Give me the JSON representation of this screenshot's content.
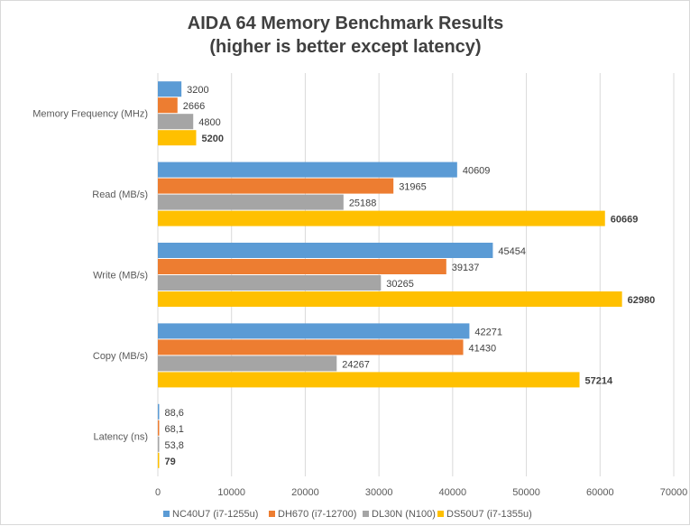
{
  "chart_data": {
    "type": "bar",
    "orientation": "horizontal",
    "title": "AIDA 64 Memory Benchmark Results",
    "subtitle": "(higher is better except latency)",
    "categories": [
      "Memory Frequency (MHz)",
      "Read (MB/s)",
      "Write (MB/s)",
      "Copy (MB/s)",
      "Latency (ns)"
    ],
    "series": [
      {
        "name": "NC40U7 (i7-1255u)",
        "color": "#5b9bd5",
        "values": [
          3200,
          40609,
          45454,
          42271,
          88.6
        ],
        "labels": [
          "3200",
          "40609",
          "45454",
          "42271",
          "88,6"
        ]
      },
      {
        "name": "DH670 (i7-12700)",
        "color": "#ed7d31",
        "values": [
          2666,
          31965,
          39137,
          41430,
          68.1
        ],
        "labels": [
          "2666",
          "31965",
          "39137",
          "41430",
          "68,1"
        ]
      },
      {
        "name": "DL30N (N100)",
        "color": "#a5a5a5",
        "values": [
          4800,
          25188,
          30265,
          24267,
          53.8
        ],
        "labels": [
          "4800",
          "25188",
          "30265",
          "24267",
          "53,8"
        ]
      },
      {
        "name": "DS50U7 (i7-1355u)",
        "color": "#ffc000",
        "values": [
          5200,
          60669,
          62980,
          57214,
          79
        ],
        "labels": [
          "5200",
          "60669",
          "62980",
          "57214",
          "79"
        ],
        "bold_labels": true
      }
    ],
    "xlim": [
      0,
      70000
    ],
    "xticks": [
      "0",
      "10000",
      "20000",
      "30000",
      "40000",
      "50000",
      "60000",
      "70000"
    ],
    "grid": true,
    "legend": "bottom"
  }
}
